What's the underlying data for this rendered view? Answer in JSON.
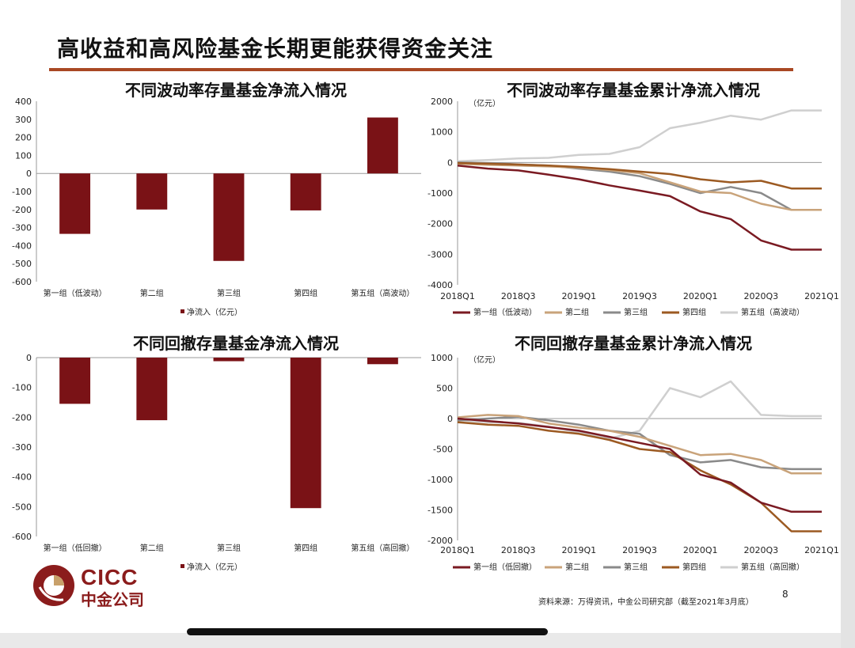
{
  "page": {
    "title": "高收益和高风险基金长期更能获得资金关注",
    "source": "资料来源：万得资讯，中金公司研究部（截至2021年3月底）",
    "page_number": "8",
    "logo_text": "CICC",
    "logo_cn": "中金公司"
  },
  "colors": {
    "accent_rule": "#a94824",
    "bar": "#7a1216",
    "s1": "#7a1a22",
    "s2": "#c9a37a",
    "s3": "#8a8a8a",
    "s4": "#9c5a22",
    "s5": "#cfcfcf"
  },
  "chart_data": [
    {
      "type": "bar",
      "title": "不同波动率存量基金净流入情况",
      "categories": [
        "第一组（低波动）",
        "第二组",
        "第三组",
        "第四组",
        "第五组（高波动）"
      ],
      "series": [
        {
          "name": "净流入（亿元）",
          "values": [
            -335,
            -200,
            -485,
            -205,
            310
          ]
        }
      ],
      "ylim": [
        -600,
        400
      ],
      "yticks": [
        400,
        300,
        200,
        100,
        0,
        -100,
        -200,
        -300,
        -400,
        -500,
        -600
      ],
      "ytick_labels": [
        "400",
        "300",
        "200",
        "100",
        "0",
        "-100",
        "-200",
        "-300",
        "-400",
        "-500",
        "-600"
      ],
      "legend": "bottom"
    },
    {
      "type": "line",
      "title": "不同波动率存量基金累计净流入情况",
      "unit": "（亿元）",
      "x": [
        "2018Q1",
        "2018Q2",
        "2018Q3",
        "2018Q4",
        "2019Q1",
        "2019Q2",
        "2019Q3",
        "2019Q4",
        "2020Q1",
        "2020Q2",
        "2020Q3",
        "2020Q4",
        "2021Q1"
      ],
      "xtick_labels": [
        "2018Q1",
        "2018Q3",
        "2019Q1",
        "2019Q3",
        "2020Q1",
        "2020Q3",
        "2021Q1"
      ],
      "series": [
        {
          "name": "第一组（低波动）",
          "values": [
            -100,
            -200,
            -260,
            -400,
            -550,
            -750,
            -920,
            -1100,
            -1600,
            -1850,
            -2550,
            -2850,
            -2850
          ]
        },
        {
          "name": "第二组",
          "values": [
            -40,
            -80,
            -100,
            -130,
            -170,
            -250,
            -350,
            -650,
            -950,
            -1000,
            -1350,
            -1550,
            -1550
          ]
        },
        {
          "name": "第三组",
          "values": [
            0,
            -20,
            -60,
            -100,
            -200,
            -300,
            -450,
            -700,
            -1000,
            -800,
            -1000,
            -1550,
            -1550
          ]
        },
        {
          "name": "第四组",
          "values": [
            -20,
            -40,
            -70,
            -100,
            -150,
            -220,
            -300,
            -380,
            -550,
            -650,
            -600,
            -850,
            -850
          ]
        },
        {
          "name": "第五组（高波动）",
          "values": [
            40,
            80,
            130,
            150,
            250,
            280,
            500,
            1120,
            1300,
            1530,
            1400,
            1700,
            1700
          ]
        }
      ],
      "ylim": [
        -4000,
        2000
      ],
      "yticks": [
        2000,
        1000,
        0,
        -1000,
        -2000,
        -3000,
        -4000
      ],
      "ytick_labels": [
        "2000",
        "1000",
        "0",
        "-1000",
        "-2000",
        "-3000",
        "-4000"
      ],
      "legend": "bottom"
    },
    {
      "type": "bar",
      "title": "不同回撤存量基金净流入情况",
      "categories": [
        "第一组（低回撤）",
        "第二组",
        "第三组",
        "第四组",
        "第五组（高回撤）"
      ],
      "series": [
        {
          "name": "净流入（亿元）",
          "values": [
            -155,
            -210,
            -12,
            -505,
            -22
          ]
        }
      ],
      "ylim": [
        -600,
        0
      ],
      "yticks": [
        0,
        -100,
        -200,
        -300,
        -400,
        -500,
        -600
      ],
      "ytick_labels": [
        "0",
        "-100",
        "-200",
        "-300",
        "-400",
        "-500",
        "-600"
      ],
      "legend": "bottom"
    },
    {
      "type": "line",
      "title": "不同回撤存量基金累计净流入情况",
      "unit": "（亿元）",
      "x": [
        "2018Q1",
        "2018Q2",
        "2018Q3",
        "2018Q4",
        "2019Q1",
        "2019Q2",
        "2019Q3",
        "2019Q4",
        "2020Q1",
        "2020Q2",
        "2020Q3",
        "2020Q4",
        "2021Q1"
      ],
      "xtick_labels": [
        "2018Q1",
        "2018Q3",
        "2019Q1",
        "2019Q3",
        "2020Q1",
        "2020Q3",
        "2021Q1"
      ],
      "series": [
        {
          "name": "第一组（低回撤）",
          "values": [
            0,
            -40,
            -80,
            -140,
            -200,
            -300,
            -400,
            -500,
            -920,
            -1050,
            -1380,
            -1530,
            -1530
          ]
        },
        {
          "name": "第二组",
          "values": [
            20,
            60,
            40,
            -80,
            -150,
            -200,
            -300,
            -450,
            -600,
            -580,
            -680,
            -900,
            -900
          ]
        },
        {
          "name": "第三组",
          "values": [
            -30,
            0,
            30,
            -30,
            -100,
            -200,
            -250,
            -600,
            -720,
            -680,
            -800,
            -830,
            -830
          ]
        },
        {
          "name": "第四组",
          "values": [
            -60,
            -100,
            -120,
            -200,
            -250,
            -350,
            -500,
            -550,
            -850,
            -1080,
            -1380,
            -1850,
            -1850
          ]
        },
        {
          "name": "第五组（高回撤）",
          "values": [
            -30,
            -60,
            -70,
            -130,
            -230,
            -330,
            -200,
            500,
            350,
            610,
            60,
            40,
            40
          ]
        }
      ],
      "ylim": [
        -2000,
        1000
      ],
      "yticks": [
        1000,
        500,
        0,
        -500,
        -1000,
        -1500,
        -2000
      ],
      "ytick_labels": [
        "1000",
        "500",
        "0",
        "-500",
        "-1000",
        "-1500",
        "-2000"
      ],
      "legend": "bottom"
    }
  ]
}
